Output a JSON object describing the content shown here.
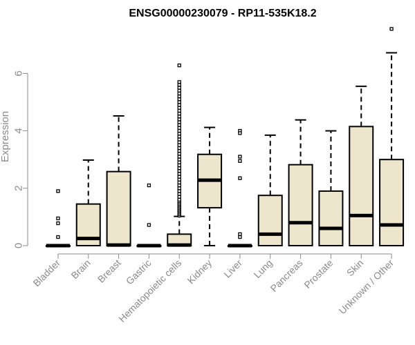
{
  "chart_data": {
    "type": "boxplot",
    "title": "ENSG00000230079 - RP11-535K18.2",
    "xlabel": "",
    "ylabel": "Expression",
    "ylim": [
      0,
      7.6
    ],
    "yticks": [
      0,
      2,
      4,
      6
    ],
    "grid": false,
    "legend": "none",
    "colors": {
      "box_fill": "#ede6cc",
      "box_stroke": "#000000",
      "axis": "#8a8a8a"
    },
    "categories": [
      "Bladder",
      "Brain",
      "Breast",
      "Gastric",
      "Hematopoietic cells",
      "Kidney",
      "Liver",
      "Lung",
      "Pancreas",
      "Prostate",
      "Skin",
      "Unknown / Other"
    ],
    "boxes": [
      {
        "category": "Bladder",
        "whisker_low": 0,
        "q1": 0,
        "median": 0,
        "q3": 0,
        "whisker_high": 0,
        "outliers": [
          1.9,
          0.95,
          0.78,
          0.3
        ]
      },
      {
        "category": "Brain",
        "whisker_low": 0,
        "q1": 0,
        "median": 0.25,
        "q3": 1.45,
        "whisker_high": 2.98,
        "outliers": []
      },
      {
        "category": "Breast",
        "whisker_low": 0,
        "q1": 0,
        "median": 0.02,
        "q3": 2.58,
        "whisker_high": 4.52,
        "outliers": []
      },
      {
        "category": "Gastric",
        "whisker_low": 0,
        "q1": 0,
        "median": 0,
        "q3": 0,
        "whisker_high": 0,
        "outliers": [
          2.1,
          0.72
        ]
      },
      {
        "category": "Hematopoietic cells",
        "whisker_low": 0,
        "q1": 0,
        "median": 0.02,
        "q3": 0.4,
        "whisker_high": 1.02,
        "outliers": [
          1.05,
          1.1,
          1.15,
          1.2,
          1.25,
          1.3,
          1.35,
          1.4,
          1.45,
          1.5,
          1.55,
          1.6,
          1.7,
          1.8,
          1.9,
          2.0,
          2.1,
          2.2,
          2.3,
          2.4,
          2.5,
          2.6,
          2.7,
          2.8,
          2.9,
          3.0,
          3.1,
          3.2,
          3.3,
          3.4,
          3.5,
          3.6,
          3.7,
          3.8,
          3.9,
          4.0,
          4.1,
          4.2,
          4.3,
          4.4,
          4.5,
          4.6,
          4.7,
          4.8,
          4.9,
          5.0,
          5.1,
          5.2,
          5.3,
          5.4,
          5.5,
          5.6,
          5.7,
          6.28
        ]
      },
      {
        "category": "Kidney",
        "whisker_low": 0,
        "q1": 1.32,
        "median": 2.28,
        "q3": 3.18,
        "whisker_high": 4.12,
        "outliers": []
      },
      {
        "category": "Liver",
        "whisker_low": 0,
        "q1": 0,
        "median": 0,
        "q3": 0,
        "whisker_high": 0,
        "outliers": [
          4.0,
          3.92,
          3.1,
          2.95,
          2.35,
          0.4,
          0.3
        ]
      },
      {
        "category": "Lung",
        "whisker_low": 0,
        "q1": 0,
        "median": 0.4,
        "q3": 1.75,
        "whisker_high": 3.85,
        "outliers": []
      },
      {
        "category": "Pancreas",
        "whisker_low": 0,
        "q1": 0,
        "median": 0.8,
        "q3": 2.82,
        "whisker_high": 4.38,
        "outliers": []
      },
      {
        "category": "Prostate",
        "whisker_low": 0,
        "q1": 0,
        "median": 0.6,
        "q3": 1.9,
        "whisker_high": 4.0,
        "outliers": []
      },
      {
        "category": "Skin",
        "whisker_low": 0,
        "q1": 0,
        "median": 1.05,
        "q3": 4.15,
        "whisker_high": 5.55,
        "outliers": []
      },
      {
        "category": "Unknown / Other",
        "whisker_low": 0,
        "q1": 0,
        "median": 0.72,
        "q3": 3.0,
        "whisker_high": 6.72,
        "outliers": [
          7.55
        ]
      }
    ]
  }
}
